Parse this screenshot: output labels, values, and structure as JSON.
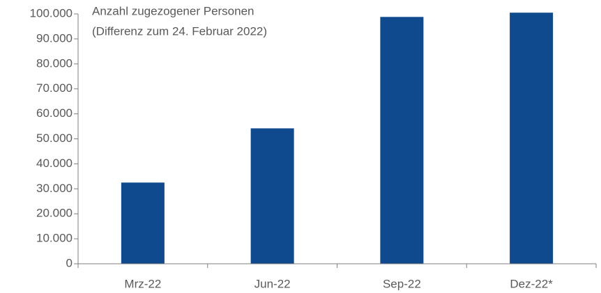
{
  "chart_data": {
    "type": "bar",
    "title": "Anzahl zugezogener Personen",
    "subtitle": "(Differenz zum 24. Februar 2022)",
    "categories": [
      "Mrz-22",
      "Jun-22",
      "Sep-22",
      "Dez-22*"
    ],
    "values": [
      32500,
      54200,
      98800,
      100500
    ],
    "color": "#0f4a8f",
    "ylim": [
      0,
      100000
    ],
    "yticks": [
      0,
      {
        "value": 10000,
        "label": "10.000"
      },
      {
        "value": 20000,
        "label": "20.000"
      },
      {
        "value": 30000,
        "label": "30.000"
      },
      {
        "value": 40000,
        "label": "40.000"
      },
      {
        "value": 50000,
        "label": "50.000"
      },
      {
        "value": 60000,
        "label": "60.000"
      },
      {
        "value": 70000,
        "label": "70.000"
      },
      {
        "value": 80000,
        "label": "80.000"
      },
      {
        "value": 90000,
        "label": "90.000"
      },
      {
        "value": 100000,
        "label": "100.000"
      }
    ],
    "grid": false
  }
}
